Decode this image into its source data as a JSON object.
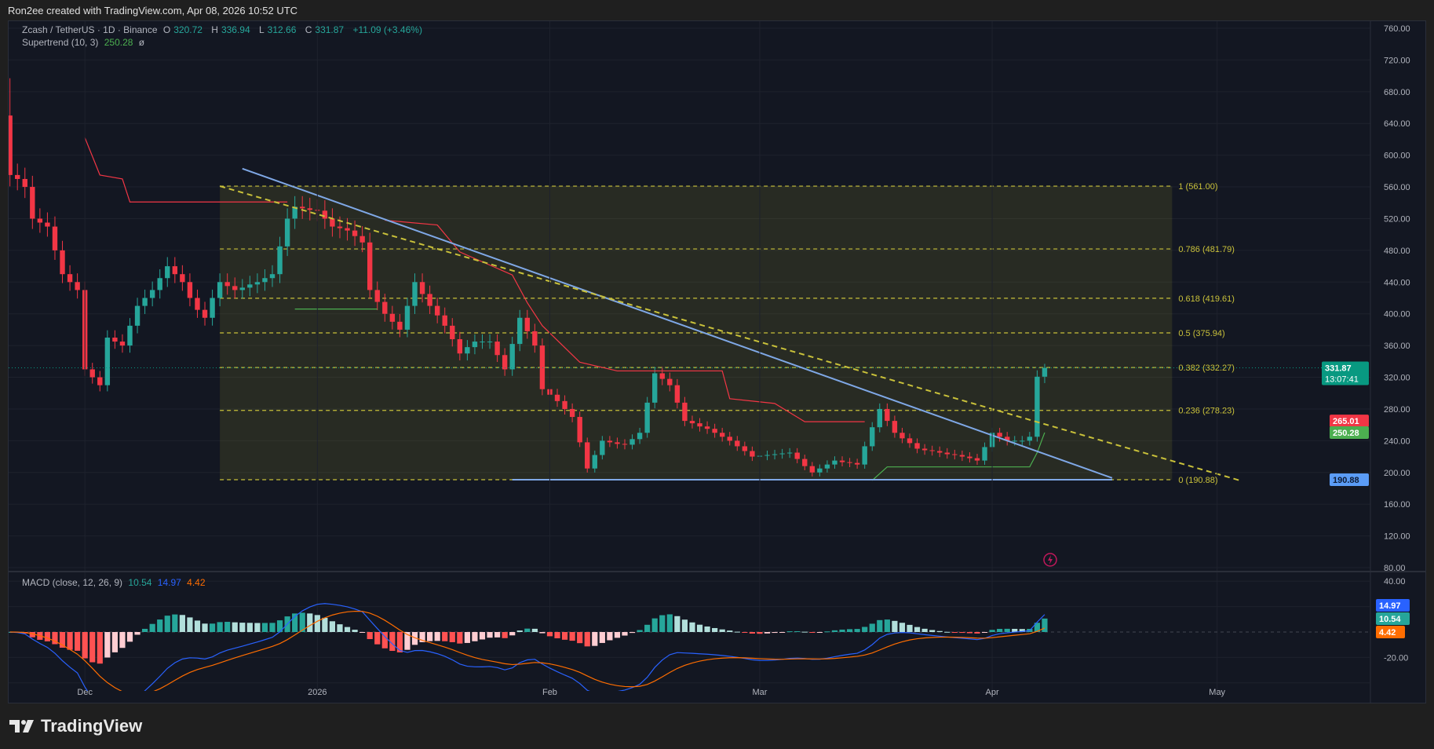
{
  "credit": "Ron2ee created with TradingView.com, Apr 08, 2026 10:52 UTC",
  "legend": {
    "symbol": "Zcash / TetherUS · 1D · Binance",
    "open_label": "O",
    "open": "320.72",
    "high_label": "H",
    "high": "336.94",
    "low_label": "L",
    "low": "312.66",
    "close_label": "C",
    "close": "331.87",
    "change": "+11.09 (+3.46%)",
    "supertrend_label": "Supertrend (10, 3)",
    "supertrend_value": "250.28",
    "supertrend_extra": "ø"
  },
  "macd_legend": {
    "label": "MACD (close, 12, 26, 9)",
    "hist": "10.54",
    "macd": "14.97",
    "signal": "4.42"
  },
  "footer": {
    "brand": "TradingView"
  },
  "colors": {
    "up": "#26a69a",
    "down": "#f23645",
    "trend_line": "#7fa8e6",
    "fib": "#c9c13a",
    "supertrend_up": "#4caf50",
    "supertrend_down": "#f23645",
    "macd": "#2962ff",
    "signal": "#ff6d00"
  },
  "chart_data": {
    "type": "candlestick",
    "date_range": [
      "2025-11-21",
      "2026-04-08"
    ],
    "first_open": 650,
    "first_high": 697,
    "last_candle": {
      "o": 320.72,
      "h": 336.94,
      "l": 312.66,
      "c": 331.87
    },
    "closes": [
      575,
      570,
      560,
      520,
      515,
      510,
      480,
      450,
      440,
      430,
      330,
      320,
      310,
      370,
      365,
      360,
      385,
      410,
      420,
      430,
      445,
      460,
      450,
      440,
      420,
      405,
      395,
      420,
      440,
      435,
      430,
      433,
      437,
      440,
      445,
      450,
      485,
      520,
      535,
      533,
      531,
      530,
      520,
      510,
      508,
      505,
      498,
      490,
      430,
      415,
      400,
      390,
      380,
      410,
      440,
      425,
      410,
      398,
      385,
      368,
      350,
      358,
      365,
      365,
      365,
      348,
      330,
      362,
      395,
      378,
      360,
      305,
      298,
      290,
      280,
      270,
      238,
      205,
      222,
      240,
      238,
      236,
      235,
      242,
      250,
      288,
      325,
      318,
      310,
      288,
      265,
      262,
      258,
      255,
      250,
      245,
      240,
      233,
      227,
      220,
      221,
      222,
      223,
      224,
      225,
      217,
      208,
      200,
      205,
      210,
      215,
      213,
      212,
      210,
      233,
      257,
      280,
      265,
      250,
      243,
      237,
      230,
      228,
      227,
      225,
      223,
      222,
      220,
      218,
      215,
      232,
      250,
      245,
      240,
      240,
      240,
      245,
      320.72,
      331.87
    ],
    "price_axis": {
      "ticks": [
        "760.00",
        "720.00",
        "680.00",
        "640.00",
        "600.00",
        "560.00",
        "520.00",
        "480.00",
        "440.00",
        "400.00",
        "360.00",
        "320.00",
        "280.00",
        "240.00",
        "200.00",
        "160.00",
        "120.00",
        "80.00"
      ],
      "range": [
        80,
        760
      ]
    },
    "time_axis": {
      "ticks": [
        {
          "label": "Dec",
          "date": "2025-12-01"
        },
        {
          "label": "2026",
          "date": "2026-01-01"
        },
        {
          "label": "Feb",
          "date": "2026-02-01"
        },
        {
          "label": "Mar",
          "date": "2026-03-01"
        },
        {
          "label": "Apr",
          "date": "2026-04-01"
        },
        {
          "label": "May",
          "date": "2026-05-01"
        }
      ]
    },
    "supertrend": {
      "params": [
        10,
        3
      ],
      "down_segments": [
        [
          [
            "2025-12-01",
            622
          ],
          [
            "2025-12-03",
            575
          ],
          [
            "2025-12-06",
            570
          ],
          [
            "2025-12-07",
            541
          ],
          [
            "2025-12-28",
            541
          ]
        ],
        [
          [
            "2026-01-10",
            518
          ],
          [
            "2026-01-17",
            512
          ],
          [
            "2026-01-20",
            478
          ],
          [
            "2026-01-27",
            449
          ],
          [
            "2026-01-29",
            414
          ],
          [
            "2026-01-31",
            385
          ],
          [
            "2026-02-05",
            339
          ],
          [
            "2026-02-10",
            328
          ],
          [
            "2026-02-24",
            328
          ],
          [
            "2026-02-25",
            293
          ],
          [
            "2026-03-03",
            287
          ],
          [
            "2026-03-07",
            264
          ],
          [
            "2026-03-15",
            264
          ]
        ]
      ],
      "up_segments": [
        [
          [
            "2025-12-29",
            406
          ],
          [
            "2026-01-09",
            406
          ]
        ],
        [
          [
            "2026-03-16",
            190
          ],
          [
            "2026-03-18",
            207
          ],
          [
            "2026-04-06",
            207
          ],
          [
            "2026-04-07",
            225
          ],
          [
            "2026-04-08",
            250.28
          ]
        ]
      ]
    },
    "fib": {
      "from_date": "2025-12-19",
      "to_date": "2026-04-25",
      "levels": [
        {
          "label": "1 (561.00)",
          "price": 561.0
        },
        {
          "label": "0.786 (481.79)",
          "price": 481.79
        },
        {
          "label": "0.618 (419.61)",
          "price": 419.61
        },
        {
          "label": "0.5 (375.94)",
          "price": 375.94
        },
        {
          "label": "0.382 (332.27)",
          "price": 332.27
        },
        {
          "label": "0.236 (278.23)",
          "price": 278.23
        },
        {
          "label": "0 (190.88)",
          "price": 190.88
        }
      ]
    },
    "trendlines": [
      {
        "style": "solid",
        "color": "#7fa8e6",
        "from": [
          "2025-12-22",
          583
        ],
        "to": [
          "2026-04-17",
          193
        ]
      },
      {
        "style": "dashed",
        "color": "#c9c13a",
        "from": [
          "2025-12-19",
          561
        ],
        "to": [
          "2026-05-04",
          190
        ]
      },
      {
        "style": "solid",
        "color": "#7fa8e6",
        "from": [
          "2026-01-27",
          190.88
        ],
        "to": [
          "2026-04-17",
          190.88
        ]
      }
    ],
    "price_badges": [
      {
        "value": "331.87",
        "sub": "13:07:41",
        "price": 331.87,
        "color": "#089981"
      },
      {
        "value": "265.01",
        "price": 265.01,
        "color": "#f23645"
      },
      {
        "value": "250.28",
        "price": 250.28,
        "color": "#4caf50"
      },
      {
        "value": "190.88",
        "price": 190.88,
        "color": "#5b9cf6"
      }
    ],
    "macd": {
      "params": [
        12,
        26,
        9
      ],
      "axis_ticks": [
        "40.00",
        "-20.00"
      ],
      "range": [
        -45,
        45
      ],
      "badges": [
        {
          "value": "14.97",
          "level": 14.97,
          "color": "#2962ff"
        },
        {
          "value": "10.54",
          "level": 10.54,
          "color": "#26a69a"
        },
        {
          "value": "4.42",
          "level": 4.42,
          "color": "#ff6d00"
        }
      ]
    }
  }
}
